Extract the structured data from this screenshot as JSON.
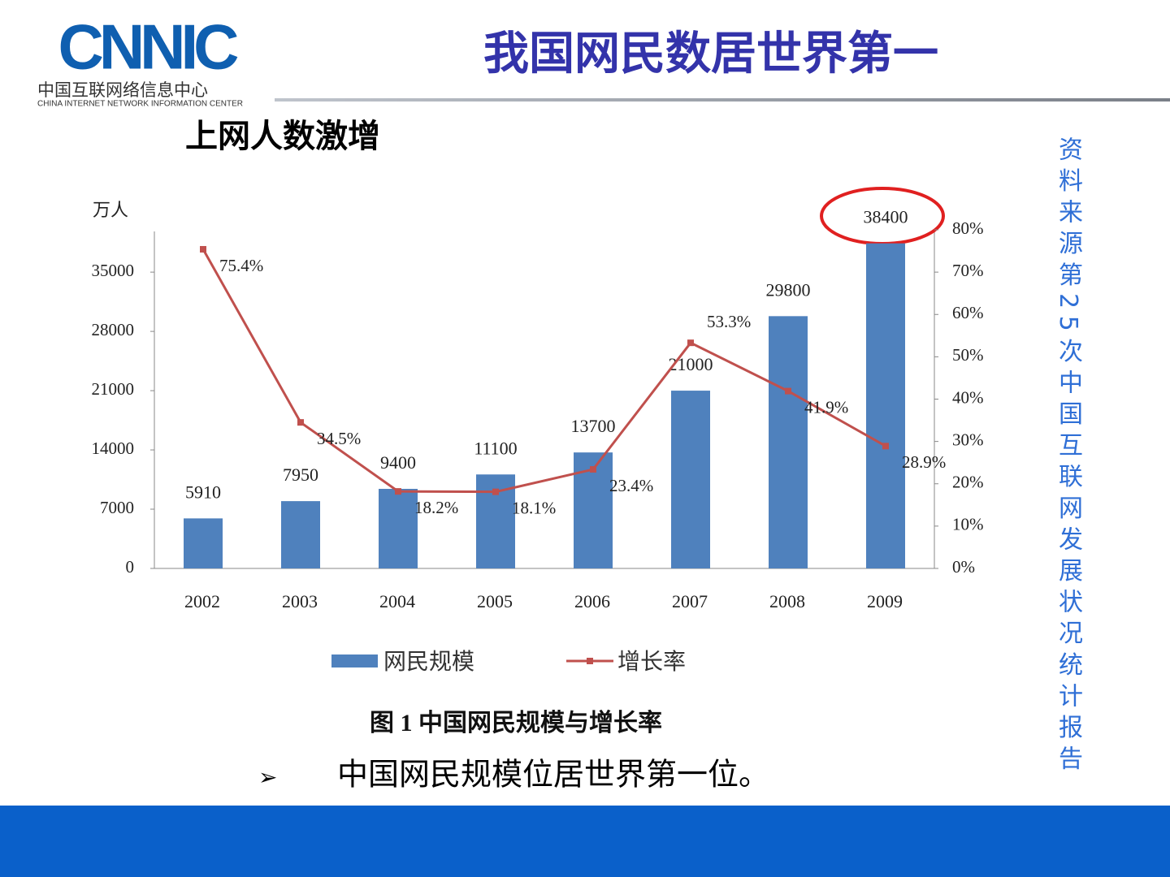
{
  "header": {
    "logo": "CNNIC",
    "org_cn": "中国互联网络信息中心",
    "org_en": "CHINA INTERNET NETWORK INFORMATION CENTER",
    "title": "我国网民数居世界第一"
  },
  "subtitle": "上网人数激增",
  "source_note": "资料来源第25次中国互联网发展状况统计报告",
  "bullet": "中国网民规模位居世界第一位。",
  "chart_data": {
    "type": "bar",
    "y_label": "万人",
    "caption": "图 1 中国网民规模与增长率",
    "categories": [
      "2002",
      "2003",
      "2004",
      "2005",
      "2006",
      "2007",
      "2008",
      "2009"
    ],
    "series": [
      {
        "name": "网民规模",
        "type": "bar",
        "color": "#4f81bd",
        "values": [
          5910,
          7950,
          9400,
          11100,
          13700,
          21000,
          29800,
          38400
        ]
      },
      {
        "name": "增长率",
        "type": "line",
        "axis": "y2",
        "color": "#c0504d",
        "values": [
          75.4,
          34.5,
          18.2,
          18.1,
          23.4,
          53.3,
          41.9,
          28.9
        ],
        "value_labels": [
          "75.4%",
          "34.5%",
          "18.2%",
          "18.1%",
          "23.4%",
          "53.3%",
          "41.9%",
          "28.9%"
        ]
      }
    ],
    "ylim": [
      0,
      40000
    ],
    "yticks": [
      0,
      7000,
      14000,
      21000,
      28000,
      35000
    ],
    "y2lim": [
      0,
      80
    ],
    "y2ticks": [
      {
        "value": 0,
        "label": "0%"
      },
      {
        "value": 10,
        "label": "10%"
      },
      {
        "value": 20,
        "label": "20%"
      },
      {
        "value": 30,
        "label": "30%"
      },
      {
        "value": 40,
        "label": "40%"
      },
      {
        "value": 50,
        "label": "50%"
      },
      {
        "value": 60,
        "label": "60%"
      },
      {
        "value": 70,
        "label": "70%"
      },
      {
        "value": 80,
        "label": "80%"
      }
    ],
    "legend": "bottom"
  }
}
